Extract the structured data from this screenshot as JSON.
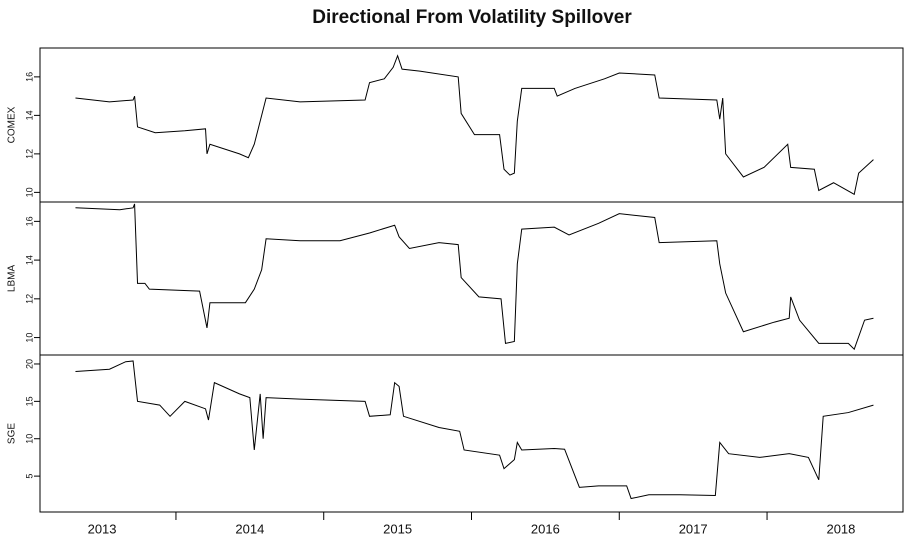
{
  "chart_data": [
    {
      "type": "line",
      "title": "Directional From Volatility Spillover",
      "ylabel": "COMEX",
      "color": "#000000",
      "xlim": [
        2013.08,
        2018.92
      ],
      "ylim": [
        9.5,
        17.5
      ],
      "yticks": [
        10,
        12,
        14,
        16
      ],
      "x": [
        2013.32,
        2013.55,
        2013.71,
        2013.72,
        2013.74,
        2013.86,
        2014.06,
        2014.2,
        2014.21,
        2014.23,
        2014.43,
        2014.49,
        2014.53,
        2014.58,
        2014.61,
        2014.84,
        2015.28,
        2015.31,
        2015.41,
        2015.47,
        2015.5,
        2015.53,
        2015.65,
        2015.91,
        2015.93,
        2016.02,
        2016.19,
        2016.22,
        2016.26,
        2016.29,
        2016.31,
        2016.34,
        2016.56,
        2016.58,
        2016.7,
        2016.9,
        2017.0,
        2017.24,
        2017.27,
        2017.66,
        2017.68,
        2017.7,
        2017.72,
        2017.84,
        2017.98,
        2018.14,
        2018.16,
        2018.32,
        2018.35,
        2018.45,
        2018.59,
        2018.62,
        2018.72
      ],
      "values": [
        14.9,
        14.7,
        14.8,
        15.0,
        13.4,
        13.1,
        13.2,
        13.3,
        12.0,
        12.5,
        12.0,
        11.8,
        12.5,
        14.0,
        14.9,
        14.7,
        14.8,
        15.7,
        15.9,
        16.5,
        17.1,
        16.4,
        16.3,
        16.0,
        14.1,
        13.0,
        13.0,
        11.2,
        10.9,
        11.0,
        13.7,
        15.4,
        15.4,
        15.0,
        15.4,
        15.9,
        16.2,
        16.1,
        14.9,
        14.8,
        13.8,
        14.9,
        12.0,
        10.8,
        11.3,
        12.5,
        11.3,
        11.2,
        10.1,
        10.5,
        9.9,
        11.0,
        11.7
      ]
    },
    {
      "type": "line",
      "ylabel": "LBMA",
      "color": "#000000",
      "xlim": [
        2013.08,
        2018.92
      ],
      "ylim": [
        9.1,
        17.0
      ],
      "yticks": [
        10,
        12,
        14,
        16
      ],
      "x": [
        2013.32,
        2013.62,
        2013.71,
        2013.72,
        2013.74,
        2013.79,
        2013.82,
        2014.16,
        2014.21,
        2014.23,
        2014.47,
        2014.53,
        2014.58,
        2014.61,
        2014.84,
        2015.11,
        2015.31,
        2015.48,
        2015.51,
        2015.58,
        2015.78,
        2015.91,
        2015.93,
        2016.05,
        2016.2,
        2016.23,
        2016.29,
        2016.31,
        2016.34,
        2016.56,
        2016.66,
        2016.86,
        2017.0,
        2017.24,
        2017.27,
        2017.66,
        2017.68,
        2017.72,
        2017.84,
        2018.05,
        2018.15,
        2018.16,
        2018.22,
        2018.35,
        2018.55,
        2018.59,
        2018.66,
        2018.72
      ],
      "values": [
        16.7,
        16.6,
        16.7,
        16.9,
        12.8,
        12.8,
        12.5,
        12.4,
        10.5,
        11.8,
        11.8,
        12.5,
        13.5,
        15.1,
        15.0,
        15.0,
        15.4,
        15.8,
        15.2,
        14.6,
        14.9,
        14.8,
        13.1,
        12.1,
        12.0,
        9.7,
        9.8,
        13.8,
        15.6,
        15.7,
        15.3,
        15.9,
        16.4,
        16.2,
        14.9,
        15.0,
        13.8,
        12.3,
        10.3,
        10.8,
        11.0,
        12.1,
        10.9,
        9.7,
        9.7,
        9.4,
        10.9,
        11.0
      ]
    },
    {
      "type": "line",
      "ylabel": "SGE",
      "color": "#000000",
      "xlim": [
        2013.08,
        2018.92
      ],
      "ylim": [
        0.2,
        21.2
      ],
      "yticks": [
        5,
        10,
        15,
        20
      ],
      "xticks": [
        {
          "value": 2013.5,
          "label": "2013"
        },
        {
          "value": 2014.5,
          "label": "2014"
        },
        {
          "value": 2015.5,
          "label": "2015"
        },
        {
          "value": 2016.5,
          "label": "2016"
        },
        {
          "value": 2017.5,
          "label": "2017"
        },
        {
          "value": 2018.5,
          "label": "2018"
        }
      ],
      "xtick_marks": [
        2014,
        2015,
        2016,
        2017,
        2018
      ],
      "x": [
        2013.32,
        2013.55,
        2013.66,
        2013.71,
        2013.74,
        2013.89,
        2013.96,
        2014.06,
        2014.2,
        2014.22,
        2014.26,
        2014.43,
        2014.5,
        2014.53,
        2014.57,
        2014.59,
        2014.61,
        2014.84,
        2015.28,
        2015.31,
        2015.45,
        2015.48,
        2015.51,
        2015.54,
        2015.78,
        2015.92,
        2015.95,
        2016.19,
        2016.22,
        2016.29,
        2016.31,
        2016.34,
        2016.56,
        2016.63,
        2016.73,
        2016.86,
        2017.05,
        2017.08,
        2017.2,
        2017.41,
        2017.65,
        2017.68,
        2017.74,
        2017.95,
        2018.15,
        2018.28,
        2018.35,
        2018.38,
        2018.55,
        2018.72
      ],
      "values": [
        19.0,
        19.3,
        20.3,
        20.4,
        15.0,
        14.5,
        13.0,
        15.0,
        14.0,
        12.5,
        17.5,
        16.0,
        15.5,
        8.5,
        16.0,
        10.0,
        15.5,
        15.3,
        15.0,
        13.0,
        13.2,
        17.5,
        17.0,
        13.0,
        11.5,
        11.0,
        8.5,
        7.8,
        6.0,
        7.2,
        9.5,
        8.5,
        8.7,
        8.6,
        3.5,
        3.7,
        3.7,
        2.0,
        2.5,
        2.5,
        2.4,
        9.5,
        8.0,
        7.5,
        8.0,
        7.5,
        4.5,
        13.0,
        13.5,
        14.5
      ]
    }
  ]
}
